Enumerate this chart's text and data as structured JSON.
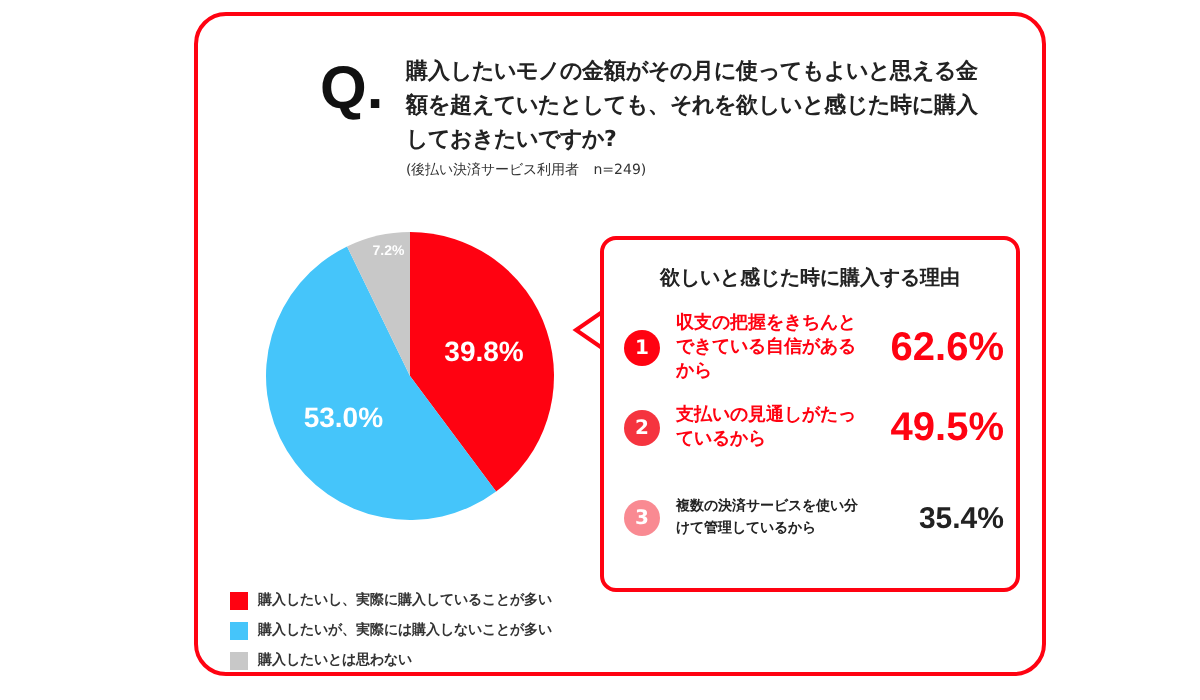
{
  "chart_data": [
    {
      "type": "pie",
      "title": "購入したいモノの金額がその月に使ってもよいと思える金額を超えていたとしても、それを欲しいと感じた時に購入しておきたいですか?",
      "subtitle": "(後払い決済サービス利用者　n=249)",
      "annotations": [
        "Q."
      ],
      "categories": [
        "購入したいし、実際に購入していることが多い",
        "購入したいが、実際には購入しないことが多い",
        "購入したいとは思わない"
      ],
      "values": [
        39.8,
        53.0,
        7.2
      ],
      "colors": [
        "#ff0211",
        "#45c5fa",
        "#c8c8c8"
      ],
      "value_labels": [
        "39.8%",
        "53.0%",
        "7.2%"
      ],
      "legend": "bottom"
    },
    {
      "type": "other",
      "title": "欲しいと感じた時に購入する理由",
      "categories": [
        "収支の把握をきちんとできている自信があるから",
        "支払いの見通しがたっているから",
        "複数の決済サービスを使い分けて管理しているから"
      ],
      "values": [
        62.6,
        49.5,
        35.4
      ],
      "value_labels": [
        "62.6%",
        "49.5%",
        "35.4%"
      ],
      "colors": [
        "#ff0211",
        "#f5343f",
        "#f98a92"
      ],
      "annotations": [
        "1",
        "2",
        "3"
      ]
    }
  ]
}
